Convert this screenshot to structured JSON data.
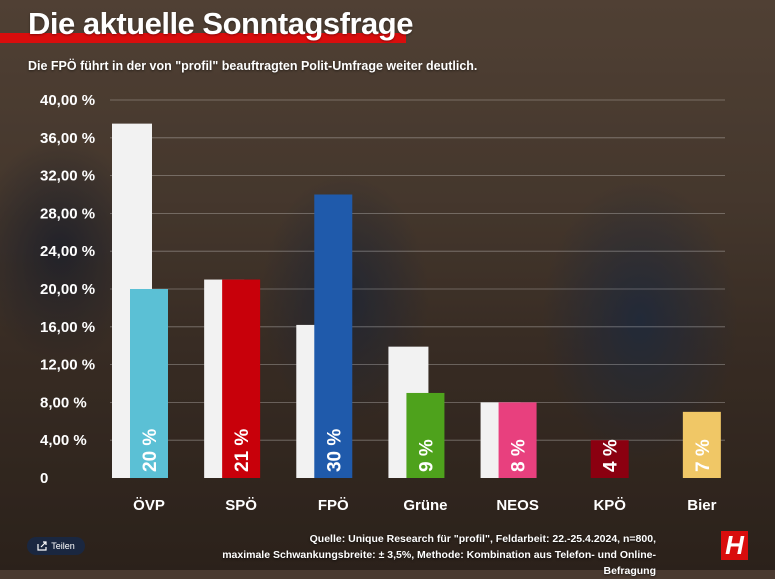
{
  "header": {
    "title": "Die aktuelle Sonntagsfrage",
    "subtitle": "Die FPÖ führt in der von \"profil\" beauftragten Polit-Umfrage weiter deutlich."
  },
  "chart_data": {
    "type": "bar",
    "categories": [
      "ÖVP",
      "SPÖ",
      "FPÖ",
      "Grüne",
      "NEOS",
      "KPÖ",
      "Bier"
    ],
    "y_ticks": [
      "0",
      "4,00 %",
      "8,00 %",
      "12,00 %",
      "16,00 %",
      "20,00 %",
      "24,00 %",
      "28,00 %",
      "32,00 %",
      "36,00 %",
      "40,00 %"
    ],
    "ylim": [
      0,
      40
    ],
    "grid": true,
    "series": [
      {
        "values": [
          37.5,
          21,
          16.2,
          13.9,
          8,
          0,
          0
        ],
        "color": "#f2f2f2"
      },
      {
        "values": [
          20,
          21,
          30,
          9,
          8,
          4,
          7
        ],
        "colors": [
          "#5bc0d5",
          "#c8000a",
          "#1f5aab",
          "#4ea21c",
          "#e8407e",
          "#8b0010",
          "#f0c766"
        ],
        "data_labels": [
          "20 %",
          "21 %",
          "30 %",
          "9 %",
          "8 %",
          "4 %",
          "7 %"
        ]
      }
    ]
  },
  "footer": {
    "source_line1": "Quelle: Unique Research für \"profil\", Feldarbeit: 22.-25.4.2024, n=800,",
    "source_line2": "maximale Schwankungsbreite: ± 3,5%, Methode: Kombination aus Telefon- und Online-Befragung",
    "share_label": "Teilen",
    "logo_text": "H",
    "share_icon": "share-icon"
  }
}
